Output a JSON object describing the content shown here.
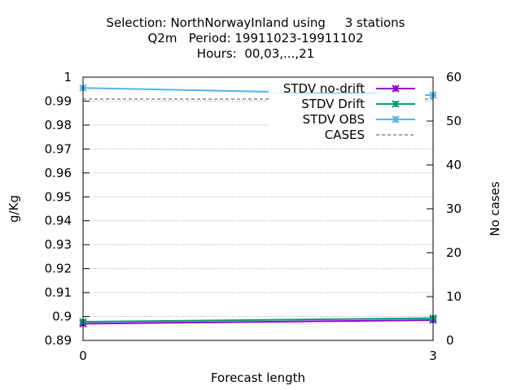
{
  "chart_data": {
    "type": "line",
    "title_lines": [
      "Selection: NorthNorwayInland using     3 stations",
      "Q2m   Period: 19911023-19911102",
      "Hours:  00,03,...,21"
    ],
    "xlabel": "Forecast length",
    "ylabel": "g/Kg",
    "y2label": "No cases",
    "xlim": [
      0,
      3
    ],
    "ylim": [
      0.89,
      1
    ],
    "y2lim": [
      0,
      60
    ],
    "x_ticks": [
      "0",
      "3"
    ],
    "y_ticks": [
      "0.89",
      "0.9",
      "0.91",
      "0.92",
      "0.93",
      "0.94",
      "0.95",
      "0.96",
      "0.97",
      "0.98",
      "0.99",
      "1"
    ],
    "y2_ticks": [
      "0",
      "10",
      "20",
      "30",
      "40",
      "50",
      "60"
    ],
    "grid": true,
    "legend_position": "top-right",
    "series": [
      {
        "name": "STDV no-drift",
        "x": [
          0,
          3
        ],
        "y": [
          0.897,
          0.8985
        ],
        "axis": "y",
        "color": "#9400d3",
        "marker": "x"
      },
      {
        "name": "STDV Drift",
        "x": [
          0,
          3
        ],
        "y": [
          0.8978,
          0.8993
        ],
        "axis": "y",
        "color": "#009e73",
        "marker": "x"
      },
      {
        "name": "STDV OBS",
        "x": [
          0,
          3
        ],
        "y": [
          0.9955,
          0.9925
        ],
        "axis": "y",
        "color": "#56b4e9",
        "marker": "x"
      },
      {
        "name": "CASES",
        "x": [
          0,
          3
        ],
        "y": [
          55,
          55
        ],
        "axis": "y2",
        "color": "#888888",
        "dashed": true
      }
    ]
  }
}
